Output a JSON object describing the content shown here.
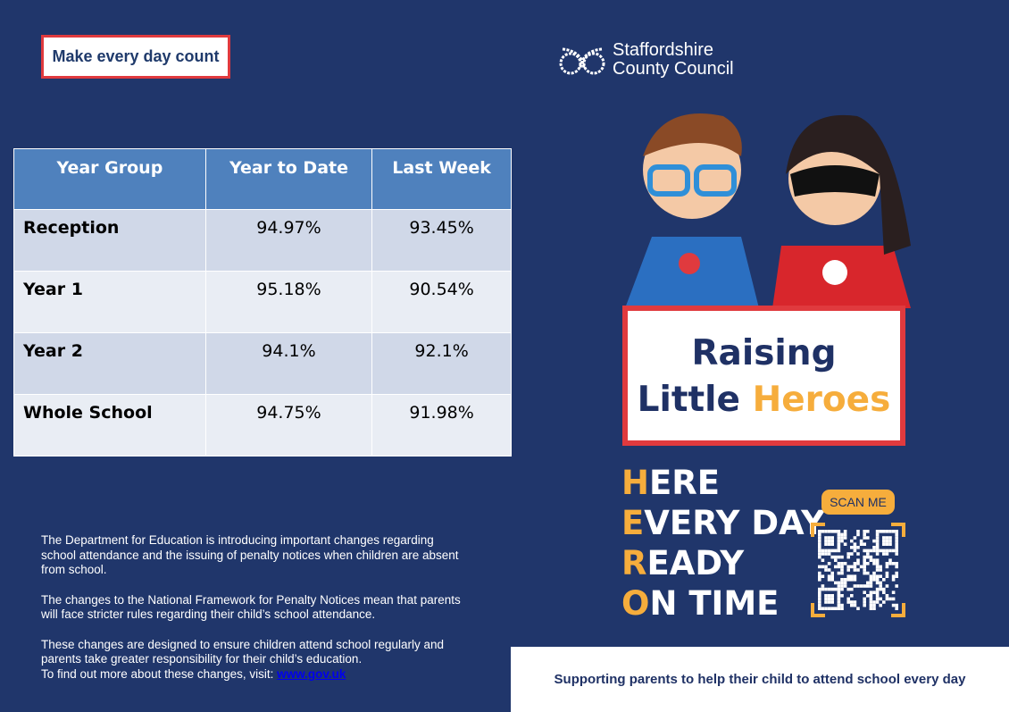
{
  "tagline": "Make every day count",
  "table": {
    "headers": [
      "Year Group",
      "Year to Date",
      "Last Week"
    ],
    "rows": [
      [
        "Reception",
        "94.97%",
        "93.45%"
      ],
      [
        "Year 1",
        "95.18%",
        "90.54%"
      ],
      [
        "Year 2",
        "94.1%",
        "92.1%"
      ],
      [
        "Whole School",
        "94.75%",
        "91.98%"
      ]
    ]
  },
  "body": {
    "p1": "The Department for Education is introducing important changes regarding school attendance and the issuing of penalty notices when children are absent from school.",
    "p2": "The changes to the National Framework for Penalty Notices mean that parents will face stricter rules regarding their child’s school attendance.",
    "p3": "These changes are designed to ensure children attend school regularly and parents take greater responsibility for their child’s education.",
    "p4": "To find out more about these changes, visit: ",
    "link": "www.gov.uk"
  },
  "logo": {
    "line1": "Staffordshire",
    "line2": "County Council"
  },
  "campaign": {
    "line1": "Raising",
    "line2a": "Little ",
    "line2b": "Heroes"
  },
  "hero": [
    {
      "letter": "H",
      "rest": "ERE"
    },
    {
      "letter": "E",
      "rest": "VERY DAY"
    },
    {
      "letter": "R",
      "rest": "EADY"
    },
    {
      "letter": "O",
      "rest": "N TIME"
    }
  ],
  "scan_label": "SCAN ME",
  "footer": "Supporting parents to help their child to attend school every day",
  "colors": {
    "background": "#20366b",
    "accent": "#f6ad3c",
    "red": "#e03a3e",
    "header": "#4f81bd"
  }
}
